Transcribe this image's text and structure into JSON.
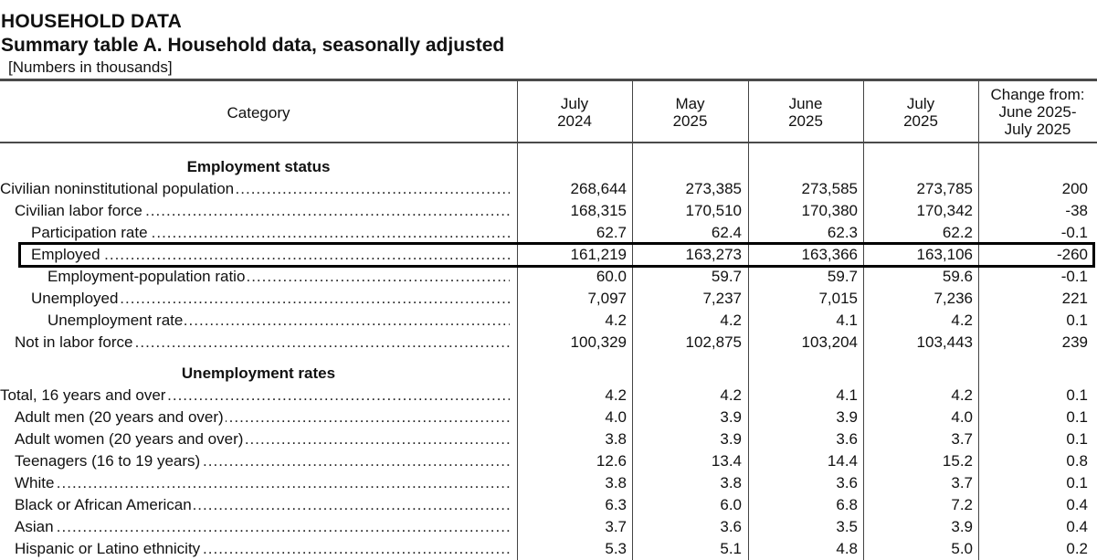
{
  "header": {
    "title": "HOUSEHOLD DATA",
    "subtitle": "Summary table A. Household data, seasonally adjusted",
    "note": "[Numbers in thousands]"
  },
  "columns": {
    "category": "Category",
    "c1": [
      "July",
      "2024"
    ],
    "c2": [
      "May",
      "2025"
    ],
    "c3": [
      "June",
      "2025"
    ],
    "c4": [
      "July",
      "2025"
    ],
    "c5": [
      "Change from:",
      "June 2025-",
      "July 2025"
    ]
  },
  "sections": {
    "employment": "Employment status",
    "unemployment": "Unemployment rates"
  },
  "rows": [
    {
      "label": "Civilian noninstitutional population",
      "values": [
        "268,644",
        "273,385",
        "273,585",
        "273,785",
        "200"
      ]
    },
    {
      "label": "Civilian labor force",
      "values": [
        "168,315",
        "170,510",
        "170,380",
        "170,342",
        "-38"
      ]
    },
    {
      "label": "Participation rate",
      "values": [
        "62.7",
        "62.4",
        "62.3",
        "62.2",
        "-0.1"
      ]
    },
    {
      "label": "Employed",
      "values": [
        "161,219",
        "163,273",
        "163,366",
        "163,106",
        "-260"
      ]
    },
    {
      "label": "Employment-population ratio",
      "values": [
        "60.0",
        "59.7",
        "59.7",
        "59.6",
        "-0.1"
      ]
    },
    {
      "label": "Unemployed",
      "values": [
        "7,097",
        "7,237",
        "7,015",
        "7,236",
        "221"
      ]
    },
    {
      "label": "Unemployment rate",
      "values": [
        "4.2",
        "4.2",
        "4.1",
        "4.2",
        "0.1"
      ]
    },
    {
      "label": "Not in labor force",
      "values": [
        "100,329",
        "102,875",
        "103,204",
        "103,443",
        "239"
      ]
    },
    {
      "label": "Total, 16 years and over",
      "values": [
        "4.2",
        "4.2",
        "4.1",
        "4.2",
        "0.1"
      ]
    },
    {
      "label": "Adult men (20 years and over)",
      "values": [
        "4.0",
        "3.9",
        "3.9",
        "4.0",
        "0.1"
      ]
    },
    {
      "label": "Adult women (20 years and over)",
      "values": [
        "3.8",
        "3.9",
        "3.6",
        "3.7",
        "0.1"
      ]
    },
    {
      "label": "Teenagers (16 to 19 years)",
      "values": [
        "12.6",
        "13.4",
        "14.4",
        "15.2",
        "0.8"
      ]
    },
    {
      "label": "White",
      "values": [
        "3.8",
        "3.8",
        "3.6",
        "3.7",
        "0.1"
      ]
    },
    {
      "label": "Black or African American",
      "values": [
        "6.3",
        "6.0",
        "6.8",
        "7.2",
        "0.4"
      ]
    },
    {
      "label": "Asian",
      "values": [
        "3.7",
        "3.6",
        "3.5",
        "3.9",
        "0.4"
      ]
    },
    {
      "label": "Hispanic or Latino ethnicity",
      "values": [
        "5.3",
        "5.1",
        "4.8",
        "5.0",
        "0.2"
      ]
    }
  ]
}
